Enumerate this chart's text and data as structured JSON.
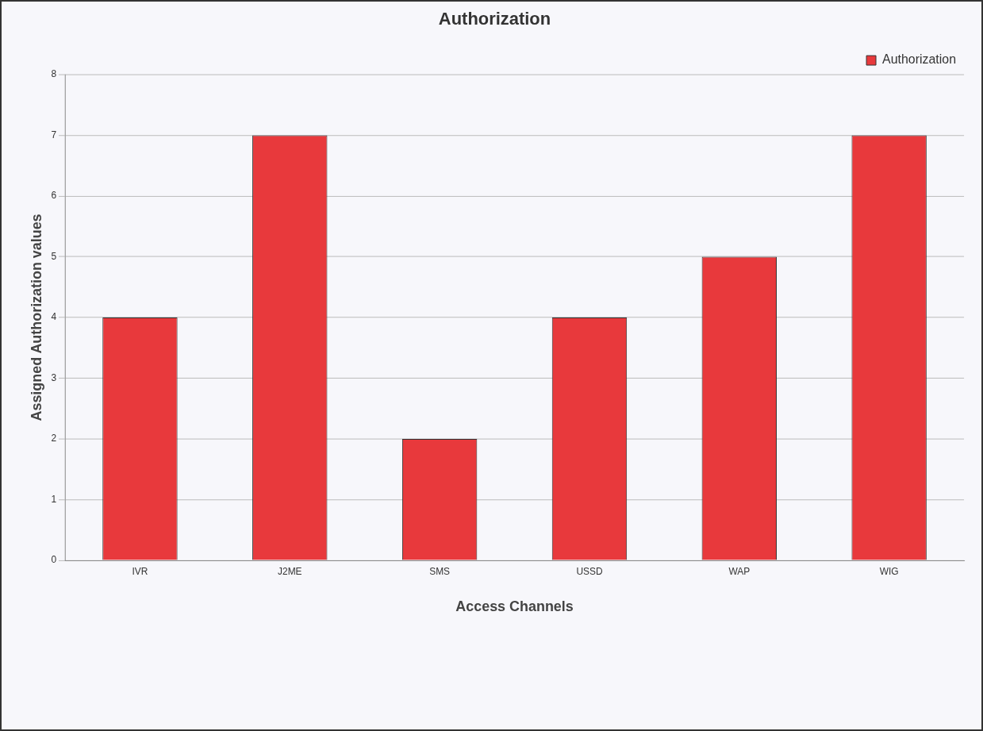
{
  "chart_data": {
    "type": "bar",
    "title": "Authorization",
    "xlabel": "Access Channels",
    "ylabel": "Assigned Authorization values",
    "categories": [
      "IVR",
      "J2ME",
      "SMS",
      "USSD",
      "WAP",
      "WIG"
    ],
    "series": [
      {
        "name": "Authorization",
        "color": "#e8393c",
        "values": [
          4,
          7,
          2,
          4,
          5,
          7
        ]
      }
    ],
    "ylim": [
      0,
      8
    ],
    "yticks": [
      0,
      1,
      2,
      3,
      4,
      5,
      6,
      7,
      8
    ],
    "grid": "y",
    "legend": "top right"
  }
}
